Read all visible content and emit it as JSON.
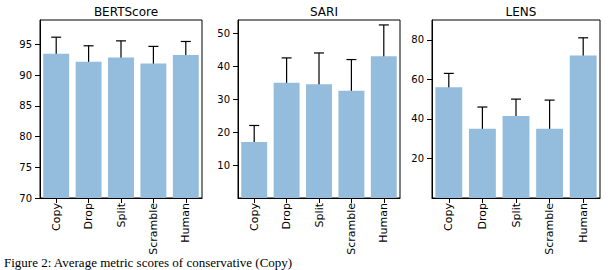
{
  "caption": "Figure 2: Average metric scores of conservative (Copy)",
  "chart_data": [
    {
      "type": "bar",
      "title": "BERTScore",
      "categories": [
        "Copy",
        "Drop",
        "Split",
        "Scramble",
        "Human"
      ],
      "values": [
        93.5,
        92.2,
        92.9,
        91.9,
        93.3
      ],
      "errors": [
        2.7,
        2.6,
        2.7,
        2.8,
        2.2
      ],
      "color": "#94bcdc",
      "ylim": [
        70,
        99
      ],
      "yticks": [
        70,
        75,
        80,
        85,
        90,
        95
      ],
      "grid": false
    },
    {
      "type": "bar",
      "title": "SARI",
      "categories": [
        "Copy",
        "Drop",
        "Split",
        "Scramble",
        "Human"
      ],
      "values": [
        17,
        35,
        34.5,
        32.5,
        43
      ],
      "errors": [
        5,
        7.5,
        9.5,
        9.5,
        9.5
      ],
      "color": "#94bcdc",
      "ylim": [
        0,
        54
      ],
      "yticks": [
        10,
        20,
        30,
        40,
        50
      ],
      "grid": false
    },
    {
      "type": "bar",
      "title": "LENS",
      "categories": [
        "Copy",
        "Drop",
        "Split",
        "Scramble",
        "Human"
      ],
      "values": [
        56,
        35,
        41.5,
        35,
        72
      ],
      "errors": [
        7,
        11,
        8.5,
        14.5,
        9
      ],
      "color": "#94bcdc",
      "ylim": [
        0,
        90
      ],
      "yticks": [
        20,
        40,
        60,
        80
      ],
      "grid": false
    }
  ]
}
